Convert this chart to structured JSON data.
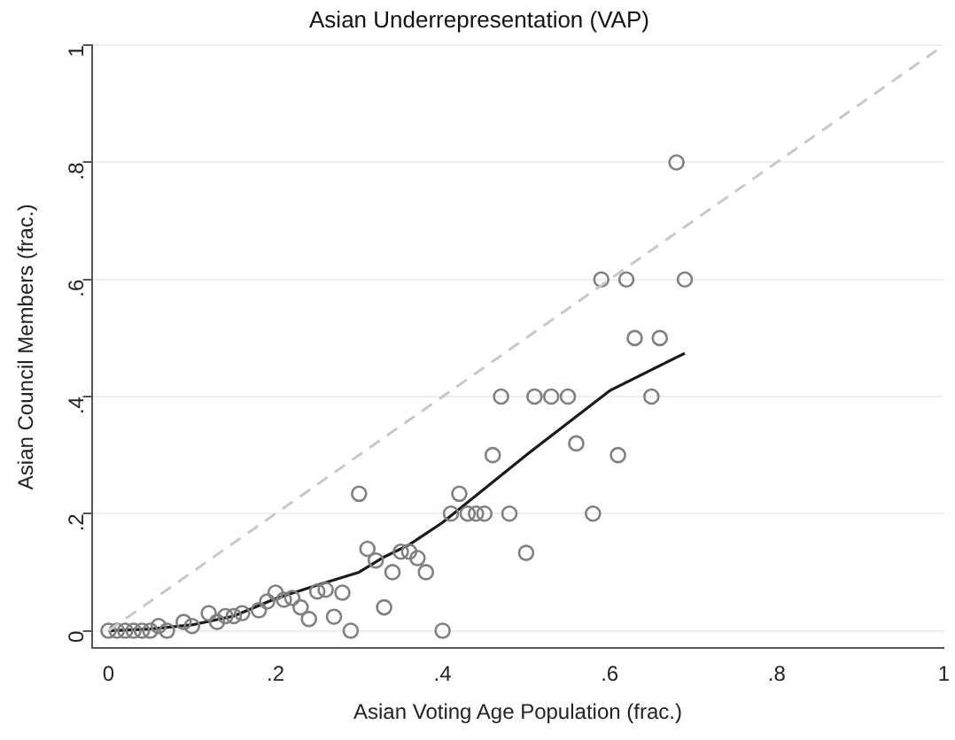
{
  "chart_data": {
    "type": "scatter",
    "title": "Asian Underrepresentation (VAP)",
    "xlabel": "Asian Voting Age Population (frac.)",
    "ylabel": "Asian Council Members (frac.)",
    "xlim": [
      -0.02,
      1.0
    ],
    "ylim": [
      -0.03,
      1.0
    ],
    "xticks": [
      0,
      {
        "value": 0.2,
        "label": ".2"
      },
      {
        "value": 0.4,
        "label": ".4"
      },
      {
        "value": 0.6,
        "label": ".6"
      },
      {
        "value": 0.8,
        "label": ".8"
      },
      1
    ],
    "yticks": [
      0,
      {
        "value": 0.2,
        "label": ".2"
      },
      {
        "value": 0.4,
        "label": ".4"
      },
      {
        "value": 0.6,
        "label": ".6"
      },
      {
        "value": 0.8,
        "label": ".8"
      },
      1
    ],
    "grid": "y",
    "series": [
      {
        "type": "line",
        "color": "#c8c8c8",
        "line_style": "dashed",
        "marker": "none",
        "x": [
          0,
          1
        ],
        "values": [
          0,
          1
        ]
      },
      {
        "color": "#808080",
        "marker": "circle",
        "x": [
          0,
          0.01,
          0.02,
          0.03,
          0.04,
          0.05,
          0.06,
          0.07,
          0.09,
          0.1,
          0.12,
          0.13,
          0.14,
          0.15,
          0.16,
          0.18,
          0.19,
          0.2,
          0.21,
          0.22,
          0.23,
          0.24,
          0.25,
          0.26,
          0.27,
          0.28,
          0.29,
          0.3,
          0.31,
          0.32,
          0.33,
          0.34,
          0.35,
          0.36,
          0.37,
          0.38,
          0.4,
          0.41,
          0.42,
          0.43,
          0.44,
          0.45,
          0.46,
          0.47,
          0.48,
          0.5,
          0.51,
          0.53,
          0.55,
          0.56,
          0.58,
          0.59,
          0.61,
          0.62,
          0.63,
          0.65,
          0.66,
          0.68,
          0.69
        ],
        "values": [
          0,
          0,
          0,
          0,
          0,
          0,
          0.008,
          0,
          0.015,
          0.008,
          0.03,
          0.015,
          0.025,
          0.025,
          0.03,
          0.035,
          0.05,
          0.065,
          0.053,
          0.056,
          0.04,
          0.02,
          0.067,
          0.07,
          0.024,
          0.065,
          0,
          0.234,
          0.14,
          0.12,
          0.04,
          0.1,
          0.135,
          0.135,
          0.124,
          0.1,
          0,
          0.2,
          0.234,
          0.2,
          0.2,
          0.2,
          0.3,
          0.4,
          0.2,
          0.133,
          0.4,
          0.4,
          0.4,
          0.32,
          0.2,
          0.6,
          0.3,
          0.6,
          0.5,
          0.4,
          0.5,
          0.8,
          0.6
        ]
      },
      {
        "type": "line",
        "color": "#1a1a1a",
        "line_style": "solid",
        "marker": "none",
        "x": [
          0,
          0.05,
          0.1,
          0.15,
          0.2,
          0.25,
          0.3,
          0.33,
          0.36,
          0.4,
          0.5,
          0.6,
          0.69
        ],
        "values": [
          0,
          0.003,
          0.01,
          0.025,
          0.055,
          0.078,
          0.1,
          0.126,
          0.147,
          0.185,
          0.3,
          0.41,
          0.474
        ]
      }
    ]
  }
}
